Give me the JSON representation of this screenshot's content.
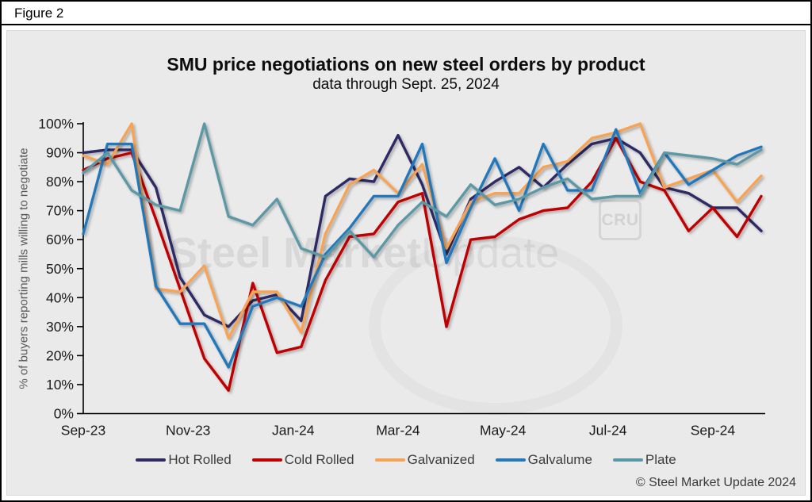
{
  "figure_label": "Figure 2",
  "title": "SMU price negotiations on new steel orders by product",
  "subtitle": "data through Sept. 25, 2024",
  "footer": "© Steel Market Update 2024",
  "watermark": {
    "text_primary": "Steel Market",
    "text_secondary": "Update",
    "cru_label": "CRU"
  },
  "colors": {
    "panel_background": "#eaeaea",
    "axis": "#000000",
    "tick_label": "#1a1a1a",
    "axis_title": "#595959"
  },
  "chart_data": {
    "type": "line",
    "title": "SMU price negotiations on new steel orders by product",
    "subtitle": "data through Sept. 25, 2024",
    "xlabel": "",
    "ylabel": "% of buyers reporting mills willing to negotiate",
    "ylim": [
      0,
      100
    ],
    "grid": false,
    "legend_position": "bottom",
    "y_ticks": [
      "0%",
      "10%",
      "20%",
      "30%",
      "40%",
      "50%",
      "60%",
      "70%",
      "80%",
      "90%",
      "100%"
    ],
    "x_tick_labels": [
      "Sep-23",
      "Nov-23",
      "Jan-24",
      "Mar-24",
      "May-24",
      "Jul-24",
      "Sep-24"
    ],
    "x_tick_positions": [
      0,
      4.33,
      8.67,
      13,
      17.33,
      21.67,
      26
    ],
    "n_points": 29,
    "frequency": "biweekly survey points from Sep-23 through Sep 25, 2024",
    "series": [
      {
        "name": "Hot Rolled",
        "color": "#2e2a66",
        "values": [
          90,
          91,
          91,
          78,
          47,
          34,
          30,
          39,
          41,
          32,
          75,
          81,
          80,
          96,
          79,
          55,
          74,
          80,
          85,
          78,
          86,
          93,
          95,
          90,
          78,
          76,
          71,
          71,
          63
        ]
      },
      {
        "name": "Cold Rolled",
        "color": "#c00000",
        "values": [
          84,
          88,
          90,
          67,
          43,
          19,
          8,
          45,
          21,
          23,
          46,
          61,
          62,
          73,
          76,
          30,
          60,
          61,
          67,
          70,
          71,
          80,
          95,
          80,
          77,
          63,
          71,
          61,
          75
        ]
      },
      {
        "name": "Galvanized",
        "color": "#f7a355",
        "values": [
          89,
          86,
          100,
          43,
          42,
          51,
          26,
          42,
          42,
          28,
          62,
          79,
          84,
          76,
          86,
          57,
          73,
          76,
          76,
          85,
          87,
          95,
          97,
          100,
          78,
          81,
          84,
          73,
          82
        ]
      },
      {
        "name": "Galvalume",
        "color": "#2478bc",
        "values": [
          62,
          93,
          93,
          44,
          31,
          31,
          16,
          37,
          40,
          37,
          55,
          64,
          75,
          75,
          93,
          52,
          71,
          88,
          70,
          93,
          77,
          77,
          98,
          76,
          90,
          79,
          84,
          89,
          92
        ]
      },
      {
        "name": "Plate",
        "color": "#5b98a5",
        "values": [
          83,
          90,
          77,
          72,
          70,
          100,
          68,
          65,
          74,
          57,
          54,
          63,
          54,
          65,
          73,
          68,
          79,
          72,
          74,
          78,
          81,
          74,
          75,
          75,
          90,
          89,
          88,
          86,
          91
        ]
      }
    ]
  }
}
